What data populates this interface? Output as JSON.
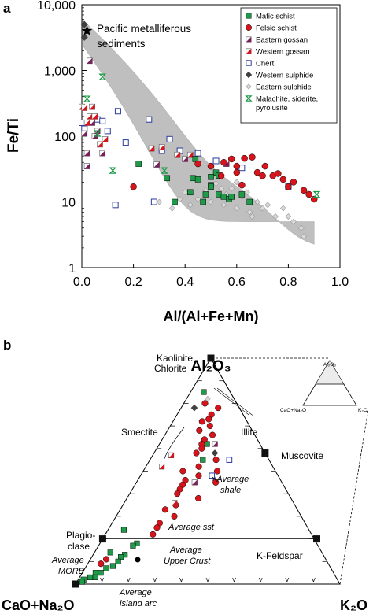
{
  "chart_data": [
    {
      "panel": "a",
      "type": "scatter",
      "xlabel": "Al/(Al+Fe+Mn)",
      "ylabel": "Fe/Ti",
      "xlim": [
        0,
        1.0
      ],
      "ylim": [
        1,
        10000
      ],
      "yscale": "log",
      "x_ticks": [
        "0.0",
        "0.2",
        "0.4",
        "0.6",
        "0.8",
        "1.0"
      ],
      "y_ticks": [
        "1",
        "10",
        "100",
        "1,000",
        "10,000"
      ],
      "grid": false,
      "legend_position": "top-right",
      "annotation": "Pacific metalliferous sediments",
      "colors": {
        "mafic": "#1e9a48",
        "felsic": "#d7141b",
        "eastern_gossan": "#7a1f5c",
        "western_gossan": "#d7141b",
        "chert": "#2a3a9c",
        "western_sulphide": "#404040",
        "eastern_sulphide": "#b0b0b0",
        "malachite": "#1e9a48",
        "field": "#b8b8b8"
      },
      "series": [
        {
          "name": "Mafic schist",
          "marker": "square-filled",
          "points": [
            [
              0.22,
              38
            ],
            [
              0.33,
              23
            ],
            [
              0.36,
              10
            ],
            [
              0.42,
              14
            ],
            [
              0.43,
              23
            ],
            [
              0.45,
              22
            ],
            [
              0.44,
              45
            ],
            [
              0.47,
              10
            ],
            [
              0.48,
              13
            ],
            [
              0.5,
              18
            ],
            [
              0.5,
              17
            ],
            [
              0.52,
              28
            ],
            [
              0.53,
              25
            ],
            [
              0.53,
              13
            ],
            [
              0.55,
              12
            ],
            [
              0.57,
              11
            ],
            [
              0.58,
              12
            ],
            [
              0.62,
              13
            ],
            [
              0.65,
              10
            ],
            [
              0.5,
              24
            ]
          ]
        },
        {
          "name": "Felsic schist",
          "marker": "circle-filled",
          "points": [
            [
              0.2,
              17
            ],
            [
              0.45,
              38
            ],
            [
              0.5,
              35
            ],
            [
              0.54,
              25
            ],
            [
              0.55,
              40
            ],
            [
              0.58,
              45
            ],
            [
              0.6,
              35
            ],
            [
              0.6,
              28
            ],
            [
              0.63,
              46
            ],
            [
              0.66,
              48
            ],
            [
              0.68,
              28
            ],
            [
              0.7,
              25
            ],
            [
              0.71,
              35
            ],
            [
              0.74,
              25
            ],
            [
              0.76,
              27
            ],
            [
              0.78,
              22
            ],
            [
              0.8,
              17
            ],
            [
              0.82,
              20
            ],
            [
              0.86,
              15
            ],
            [
              0.88,
              13
            ],
            [
              0.9,
              11
            ],
            [
              0.62,
              18
            ]
          ]
        },
        {
          "name": "Eastern gossan",
          "marker": "square-half",
          "points": [
            [
              0.01,
              110
            ],
            [
              0.02,
              55
            ],
            [
              0.03,
              1400
            ],
            [
              0.04,
              160
            ],
            [
              0.05,
              100
            ],
            [
              0.06,
              120
            ],
            [
              0.02,
              35
            ],
            [
              0.08,
              55
            ],
            [
              0.29,
              37
            ],
            [
              0.4,
              45
            ],
            [
              0.56,
              38
            ]
          ]
        },
        {
          "name": "Western gossan",
          "marker": "square-half",
          "points": [
            [
              0.0,
              280
            ],
            [
              0.01,
              270
            ],
            [
              0.02,
              160
            ],
            [
              0.03,
              200
            ],
            [
              0.04,
              280
            ],
            [
              0.05,
              200
            ],
            [
              0.07,
              75
            ],
            [
              0.09,
              90
            ],
            [
              0.27,
              65
            ],
            [
              0.31,
              68
            ],
            [
              0.37,
              52
            ],
            [
              0.42,
              52
            ]
          ]
        },
        {
          "name": "Chert",
          "marker": "square-open",
          "points": [
            [
              0.0,
              160
            ],
            [
              0.01,
              130
            ],
            [
              0.06,
              180
            ],
            [
              0.08,
              170
            ],
            [
              0.1,
              120
            ],
            [
              0.14,
              240
            ],
            [
              0.17,
              80
            ],
            [
              0.26,
              180
            ],
            [
              0.31,
              60
            ],
            [
              0.34,
              90
            ],
            [
              0.38,
              60
            ],
            [
              0.45,
              55
            ],
            [
              0.52,
              42
            ],
            [
              0.62,
              33
            ],
            [
              0.28,
              10
            ],
            [
              0.13,
              9
            ],
            [
              0.8,
              17
            ]
          ]
        },
        {
          "name": "Western sulphide",
          "marker": "diamond-filled",
          "points": [
            [
              0.01,
              5000
            ],
            [
              0.01,
              3200
            ]
          ]
        },
        {
          "name": "Eastern sulphide",
          "marker": "diamond-open",
          "points": [
            [
              0.4,
              14
            ],
            [
              0.45,
              11
            ],
            [
              0.5,
              10
            ],
            [
              0.55,
              9
            ],
            [
              0.6,
              8
            ],
            [
              0.65,
              7
            ],
            [
              0.7,
              8
            ],
            [
              0.75,
              6
            ],
            [
              0.8,
              6
            ],
            [
              0.85,
              4
            ],
            [
              0.58,
              16
            ],
            [
              0.52,
              19
            ],
            [
              0.48,
              15
            ],
            [
              0.62,
              12
            ],
            [
              0.68,
              10
            ],
            [
              0.72,
              9
            ],
            [
              0.56,
              13
            ],
            [
              0.42,
              9
            ],
            [
              0.38,
              11
            ],
            [
              0.66,
              6
            ],
            [
              0.78,
              8
            ],
            [
              0.82,
              5
            ],
            [
              0.86,
              3
            ],
            [
              0.3,
              10
            ],
            [
              0.35,
              8
            ],
            [
              0.54,
              16
            ],
            [
              0.6,
              20
            ],
            [
              0.64,
              14
            ]
          ]
        },
        {
          "name": "Malachite, siderite, pyrolusite",
          "marker": "hourglass",
          "points": [
            [
              0.08,
              800
            ],
            [
              0.12,
              30
            ],
            [
              0.02,
              370
            ],
            [
              0.06,
              110
            ],
            [
              0.91,
              13
            ],
            [
              0.32,
              30
            ]
          ]
        }
      ]
    },
    {
      "panel": "b",
      "type": "ternary",
      "axes": {
        "top": "Al2O3",
        "left": "CaO+Na2O",
        "right": "K2O"
      },
      "minerals": [
        {
          "name": "Kaolinite"
        },
        {
          "name": "Chlorite"
        },
        {
          "name": "Smectite"
        },
        {
          "name": "Illite"
        },
        {
          "name": "Muscovite"
        },
        {
          "name": "Plagio-clase"
        },
        {
          "name": "K-Feldspar"
        }
      ],
      "averages": [
        {
          "name": "Average shale"
        },
        {
          "name": "Average sst"
        },
        {
          "name": "Average Upper Crust"
        },
        {
          "name": "Average MORB"
        },
        {
          "name": "Average island arc"
        }
      ],
      "inset": {
        "top": "Al2O3",
        "left": "CaO+Na2O",
        "right": "K2O"
      },
      "series": [
        {
          "name": "Mafic schist",
          "points": [
            [
              0.85,
              0.1
            ],
            [
              0.62,
              0.2
            ],
            [
              0.55,
              0.25
            ],
            [
              0.18,
              0.68
            ],
            [
              0.17,
              0.7
            ],
            [
              0.13,
              0.75
            ],
            [
              0.12,
              0.77
            ],
            [
              0.1,
              0.79
            ],
            [
              0.08,
              0.82
            ],
            [
              0.07,
              0.85
            ],
            [
              0.05,
              0.88
            ],
            [
              0.05,
              0.9
            ],
            [
              0.03,
              0.93
            ],
            [
              0.02,
              0.96
            ],
            [
              0.03,
              0.91
            ],
            [
              0.01,
              0.97
            ],
            [
              0.24,
              0.7
            ],
            [
              0.14,
              0.8
            ]
          ]
        },
        {
          "name": "Felsic schist",
          "points": [
            [
              0.8,
              0.12
            ],
            [
              0.78,
              0.08
            ],
            [
              0.75,
              0.12
            ],
            [
              0.73,
              0.14
            ],
            [
              0.7,
              0.15
            ],
            [
              0.72,
              0.17
            ],
            [
              0.68,
              0.2
            ],
            [
              0.66,
              0.16
            ],
            [
              0.64,
              0.2
            ],
            [
              0.62,
              0.22
            ],
            [
              0.6,
              0.23
            ],
            [
              0.58,
              0.26
            ],
            [
              0.55,
              0.2
            ],
            [
              0.52,
              0.28
            ],
            [
              0.5,
              0.35
            ],
            [
              0.48,
              0.3
            ],
            [
              0.46,
              0.36
            ],
            [
              0.44,
              0.38
            ],
            [
              0.42,
              0.4
            ],
            [
              0.4,
              0.42
            ],
            [
              0.38,
              0.35
            ],
            [
              0.35,
              0.45
            ],
            [
              0.33,
              0.5
            ],
            [
              0.3,
              0.48
            ],
            [
              0.27,
              0.55
            ],
            [
              0.25,
              0.57
            ],
            [
              0.22,
              0.6
            ],
            [
              0.45,
              0.25
            ],
            [
              0.5,
              0.22
            ],
            [
              0.11,
              0.83
            ],
            [
              0.09,
              0.86
            ]
          ]
        },
        {
          "name": "Eastern gossan",
          "points": [
            [
              0.62,
              0.17
            ],
            [
              0.45,
              0.33
            ]
          ]
        },
        {
          "name": "Western gossan",
          "points": [
            [
              0.52,
              0.42
            ],
            [
              0.36,
              0.45
            ],
            [
              0.57,
              0.36
            ]
          ]
        },
        {
          "name": "Chert",
          "points": [
            [
              0.55,
              0.15
            ],
            [
              0.48,
              0.25
            ]
          ]
        },
        {
          "name": "Western sulphide",
          "points": [
            [
              0.78,
              0.17
            ],
            [
              0.58,
              0.19
            ]
          ]
        },
        {
          "name": "Eastern sulphide",
          "points": [
            [
              0.82,
              0.1
            ]
          ]
        }
      ]
    }
  ],
  "labels": {
    "panel_a": "a",
    "panel_b": "b",
    "annotation_line1": "Pacific metalliferous",
    "annotation_line2": "sediments",
    "ternary_top": "Al₂O₃",
    "ternary_left": "CaO+Na₂O",
    "ternary_right": "K₂O",
    "kaolinite": "Kaolinite",
    "chlorite": "Chlorite",
    "smectite": "Smectite",
    "illite": "Illite",
    "muscovite": "Muscovite",
    "plagio": "Plagio-",
    "clase": "clase",
    "kfeldspar": "K-Feldspar",
    "avg_shale_1": "×Average",
    "avg_shale_2": "shale",
    "avg_sst": "+ Average sst",
    "avg_crust_1": "Average",
    "avg_crust_2": "Upper Crust",
    "avg_morb_1": "Average",
    "avg_morb_2": "MORB",
    "avg_arc_1": "Average",
    "avg_arc_2": "island arc",
    "inset_top": "Al₂O₃",
    "inset_left": "CaO+Na₂O",
    "inset_right": "K₂O"
  }
}
